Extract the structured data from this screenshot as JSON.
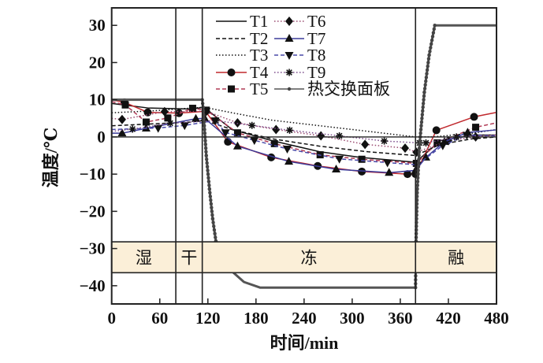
{
  "chart_data": {
    "type": "line",
    "title": "",
    "xlabel": "时间/min",
    "ylabel": "温度/℃",
    "xlim": [
      0,
      480
    ],
    "ylim": [
      -44.9,
      34.7
    ],
    "xticks": [
      0,
      60,
      120,
      180,
      240,
      300,
      360,
      420,
      480
    ],
    "yticks": [
      30,
      20,
      10,
      0,
      -10,
      -20,
      -30,
      -40
    ],
    "xtick_labels": [
      "0",
      "60",
      "120",
      "180",
      "240",
      "300",
      "360",
      "420",
      "480"
    ],
    "ytick_labels": [
      "30",
      "20",
      "10",
      "0",
      "−10",
      "−20",
      "−30",
      "−40"
    ],
    "grid": false,
    "legend_position": "top-center",
    "phases": [
      {
        "label": "湿",
        "start": 0,
        "end": 80
      },
      {
        "label": "干",
        "start": 80,
        "end": 113
      },
      {
        "label": "冻",
        "start": 113,
        "end": 379
      },
      {
        "label": "融",
        "start": 379,
        "end": 480
      }
    ],
    "phase_band_range": [
      -36.5,
      -28.2
    ],
    "phase_band_color": "#fbefd8",
    "series": [
      {
        "name": "T1",
        "color": "#111111",
        "dash": "",
        "marker": "none",
        "x": [
          0,
          45,
          100,
          115,
          150,
          200,
          260,
          310,
          379,
          410,
          450,
          480
        ],
        "y": [
          9,
          7.8,
          7.5,
          8,
          2,
          -1,
          -4,
          -5.5,
          -6.8,
          -1,
          0.5,
          0.5
        ]
      },
      {
        "name": "T2",
        "color": "#111111",
        "dash": "5,3",
        "marker": "none",
        "x": [
          0,
          50,
          100,
          115,
          150,
          200,
          260,
          320,
          379,
          410,
          450,
          480
        ],
        "y": [
          3,
          3.5,
          4,
          4.5,
          2,
          -0.5,
          -2.5,
          -4,
          -5,
          -2,
          -0.5,
          0
        ]
      },
      {
        "name": "T3",
        "color": "#111111",
        "dash": "1.5,2.5",
        "marker": "none",
        "x": [
          0,
          50,
          115,
          150,
          200,
          260,
          320,
          379,
          400,
          450,
          480
        ],
        "y": [
          6.5,
          7,
          8,
          6.5,
          4.5,
          3,
          1.5,
          0,
          0,
          1,
          2
        ]
      },
      {
        "name": "T4",
        "color": "#c0282d",
        "dash": "",
        "marker": "circle",
        "x": [
          0,
          16,
          45,
          84,
          117,
          145,
          199,
          257,
          312,
          369,
          379,
          405,
          452,
          480
        ],
        "y": [
          10,
          9.3,
          6.6,
          6.4,
          6.9,
          -1.3,
          -5.5,
          -7.8,
          -9.3,
          -10,
          -10,
          1.8,
          5.4,
          6.6
        ]
      },
      {
        "name": "T5",
        "color": "#b03a55",
        "dash": "5,3",
        "marker": "square",
        "x": [
          0,
          17,
          43,
          70,
          101,
          118,
          157,
          203,
          260,
          312,
          380,
          406,
          454,
          480
        ],
        "y": [
          9.5,
          8.6,
          4,
          5.1,
          7.7,
          7.2,
          1.1,
          -1.8,
          -4.8,
          -6,
          -7.1,
          -1.6,
          2.6,
          3.8
        ]
      },
      {
        "name": "T6",
        "color": "#9a4a70",
        "dash": "1.5,2.5",
        "marker": "diamond",
        "x": [
          0,
          13,
          66,
          118,
          157,
          205,
          261,
          316,
          366,
          380,
          420,
          454,
          480
        ],
        "y": [
          5,
          4.7,
          6.8,
          6.9,
          3.8,
          2,
          0.3,
          -2,
          -3,
          -4.1,
          -1,
          0,
          0.5
        ]
      },
      {
        "name": "T7",
        "color": "#3b3b9a",
        "dash": "",
        "marker": "triangle",
        "x": [
          0,
          13,
          43,
          105,
          116,
          157,
          221,
          280,
          346,
          379,
          392,
          415,
          444,
          480
        ],
        "y": [
          1,
          1,
          2.3,
          4.9,
          5,
          -2.5,
          -6.6,
          -8.7,
          -9.6,
          -9,
          -5.5,
          -1.3,
          1.2,
          1.9
        ]
      },
      {
        "name": "T8",
        "color": "#4a4aa8",
        "dash": "5,3",
        "marker": "triangle-down",
        "x": [
          0,
          58,
          91,
          129,
          142,
          178,
          219,
          284,
          344,
          381,
          413,
          443,
          480
        ],
        "y": [
          2,
          2.4,
          3.1,
          4.4,
          1.2,
          -0.9,
          -3.2,
          -5.9,
          -6.9,
          -7.5,
          -2.3,
          0.5,
          0.3
        ]
      },
      {
        "name": "T9",
        "color": "#7a4a8a",
        "dash": "1.5,2.5",
        "marker": "asterisk",
        "x": [
          0,
          26,
          73,
          130,
          175,
          222,
          284,
          340,
          384,
          392,
          430,
          480
        ],
        "y": [
          1.5,
          2.1,
          3.7,
          4.4,
          3.1,
          1.8,
          0.3,
          -1.1,
          -1.6,
          -1.6,
          0,
          0.5
        ]
      },
      {
        "name": "热交换面板",
        "color": "#555555",
        "dash": "",
        "marker": "dot",
        "x": [
          0,
          113,
          114,
          118,
          122,
          126,
          130,
          140,
          152,
          165,
          185,
          379,
          379.5,
          381,
          384,
          390,
          396,
          403,
          480
        ],
        "y": [
          10,
          10,
          8,
          -5,
          -14,
          -22,
          -28,
          -34,
          -36.5,
          -39,
          -40.5,
          -40.5,
          -30,
          -15,
          -2,
          12,
          22,
          30,
          30
        ]
      }
    ]
  }
}
